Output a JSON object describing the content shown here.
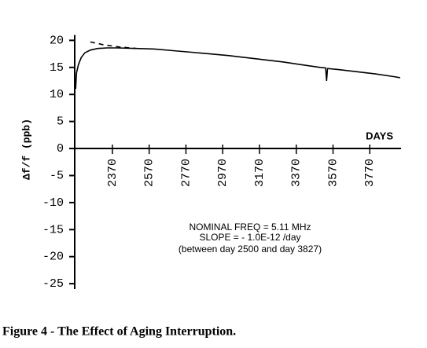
{
  "chart_data": {
    "type": "line",
    "y_label": "Δf/f (ppb)",
    "x_label": "DAYS",
    "annotation": [
      "NOMINAL FREQ  = 5.11 MHz",
      "SLOPE = - 1.0E-12 /day",
      "(between day 2500 and day 3827)"
    ],
    "caption": "Figure 4 - The Effect of Aging Interruption.",
    "xlim": [
      2165,
      3940
    ],
    "xticks": [
      2370,
      2570,
      2770,
      2970,
      3170,
      3370,
      3570,
      3770
    ],
    "ylim": [
      -26,
      21
    ],
    "yticks": [
      20,
      15,
      10,
      5,
      0,
      -5,
      -10,
      -15,
      -20,
      -25
    ],
    "series": [
      {
        "color": "#000000",
        "dashed": false,
        "x": [
          2170,
          2175,
          2185,
          2200,
          2220,
          2250,
          2290,
          2340,
          2400,
          2500,
          2600,
          2700,
          2800,
          2900,
          3000,
          3100,
          3200,
          3300,
          3400,
          3500,
          3530,
          3535,
          3540,
          3600,
          3700,
          3800,
          3900,
          3935
        ],
        "values": [
          11,
          14,
          15.5,
          16.8,
          17.7,
          18.2,
          18.5,
          18.6,
          18.6,
          18.5,
          18.4,
          18.1,
          17.8,
          17.5,
          17.2,
          16.8,
          16.4,
          16.0,
          15.5,
          15.0,
          14.9,
          12.5,
          14.8,
          14.6,
          14.2,
          13.8,
          13.3,
          13.1
        ]
      },
      {
        "color": "#000000",
        "dashed": true,
        "x": [
          2250,
          2320,
          2400,
          2500
        ],
        "values": [
          19.7,
          19.2,
          18.8,
          18.5
        ]
      }
    ]
  }
}
